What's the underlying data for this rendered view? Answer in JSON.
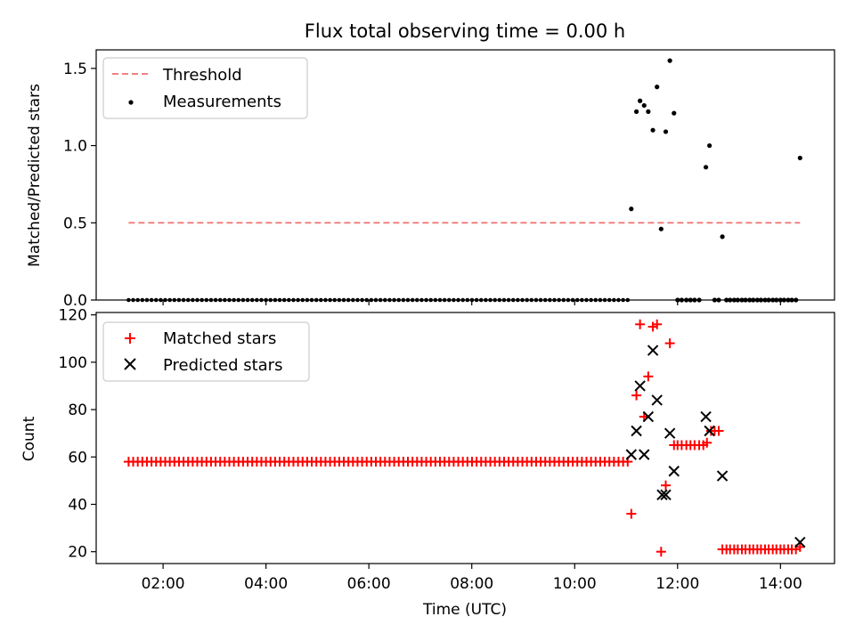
{
  "chart_data": [
    {
      "type": "scatter",
      "title": "Flux total observing time = 0.00 h",
      "xlabel": "",
      "ylabel": "Matched/Predicted stars",
      "xlim": [
        0.7,
        15.05
      ],
      "ylim": [
        0,
        1.62
      ],
      "yticks": [
        0.0,
        0.5,
        1.0,
        1.5
      ],
      "ytick_labels": [
        "0.0",
        "0.5",
        "1.0",
        "1.5"
      ],
      "legend_position": "top-left",
      "threshold": {
        "name": "Threshold",
        "value": 0.5,
        "x_range": [
          1.33,
          14.38
        ],
        "color": "#f08080"
      },
      "measurements": {
        "name": "Measurements",
        "color": "#000000",
        "zeros_range": [
          1.33,
          11.03
        ],
        "zeros_count": 110,
        "points": [
          [
            11.1,
            0.59
          ],
          [
            11.2,
            1.22
          ],
          [
            11.27,
            1.29
          ],
          [
            11.35,
            1.26
          ],
          [
            11.43,
            1.22
          ],
          [
            11.52,
            1.1
          ],
          [
            11.6,
            1.38
          ],
          [
            11.68,
            0.46
          ],
          [
            11.77,
            1.09
          ],
          [
            11.85,
            1.55
          ],
          [
            11.93,
            1.21
          ],
          [
            12.0,
            0.0
          ],
          [
            12.08,
            0.0
          ],
          [
            12.17,
            0.0
          ],
          [
            12.25,
            0.0
          ],
          [
            12.33,
            0.0
          ],
          [
            12.42,
            0.0
          ],
          [
            12.55,
            0.86
          ],
          [
            12.62,
            1.0
          ],
          [
            12.72,
            0.0
          ],
          [
            12.8,
            0.0
          ],
          [
            12.87,
            0.41
          ],
          [
            12.95,
            0.0
          ],
          [
            13.02,
            0.0
          ],
          [
            13.1,
            0.0
          ],
          [
            13.17,
            0.0
          ],
          [
            13.25,
            0.0
          ],
          [
            13.32,
            0.0
          ],
          [
            13.4,
            0.0
          ],
          [
            13.47,
            0.0
          ],
          [
            13.55,
            0.0
          ],
          [
            13.62,
            0.0
          ],
          [
            13.7,
            0.0
          ],
          [
            13.77,
            0.0
          ],
          [
            13.85,
            0.0
          ],
          [
            13.92,
            0.0
          ],
          [
            14.0,
            0.0
          ],
          [
            14.07,
            0.0
          ],
          [
            14.15,
            0.0
          ],
          [
            14.22,
            0.0
          ],
          [
            14.3,
            0.0
          ],
          [
            14.38,
            0.92
          ]
        ]
      }
    },
    {
      "type": "scatter",
      "title": "",
      "xlabel": "Time (UTC)",
      "ylabel": "Count",
      "xlim": [
        0.7,
        15.05
      ],
      "ylim": [
        15,
        121
      ],
      "yticks": [
        20,
        40,
        60,
        80,
        100,
        120
      ],
      "ytick_labels": [
        "20",
        "40",
        "60",
        "80",
        "100",
        "120"
      ],
      "xticks": [
        2,
        4,
        6,
        8,
        10,
        12,
        14
      ],
      "xtick_labels": [
        "02:00",
        "04:00",
        "06:00",
        "08:00",
        "10:00",
        "12:00",
        "14:00"
      ],
      "legend_position": "top-left",
      "matched": {
        "name": "Matched stars",
        "color": "#ff0000",
        "constant_range": [
          1.33,
          11.03
        ],
        "constant_count": 110,
        "constant_value": 58,
        "points": [
          [
            11.1,
            36
          ],
          [
            11.2,
            86
          ],
          [
            11.27,
            116
          ],
          [
            11.35,
            77
          ],
          [
            11.43,
            94
          ],
          [
            11.52,
            115
          ],
          [
            11.6,
            116
          ],
          [
            11.68,
            20
          ],
          [
            11.77,
            48
          ],
          [
            11.85,
            108
          ],
          [
            11.93,
            65
          ],
          [
            12.0,
            65
          ],
          [
            12.08,
            65
          ],
          [
            12.17,
            65
          ],
          [
            12.25,
            65
          ],
          [
            12.33,
            65
          ],
          [
            12.42,
            65
          ],
          [
            12.5,
            65
          ],
          [
            12.57,
            66
          ],
          [
            12.65,
            71
          ],
          [
            12.72,
            71
          ],
          [
            12.8,
            71
          ],
          [
            12.87,
            21
          ],
          [
            12.95,
            21
          ],
          [
            13.02,
            21
          ],
          [
            13.1,
            21
          ],
          [
            13.17,
            21
          ],
          [
            13.25,
            21
          ],
          [
            13.32,
            21
          ],
          [
            13.4,
            21
          ],
          [
            13.47,
            21
          ],
          [
            13.55,
            21
          ],
          [
            13.62,
            21
          ],
          [
            13.7,
            21
          ],
          [
            13.77,
            21
          ],
          [
            13.85,
            21
          ],
          [
            13.92,
            21
          ],
          [
            14.0,
            21
          ],
          [
            14.07,
            21
          ],
          [
            14.15,
            21
          ],
          [
            14.22,
            21
          ],
          [
            14.3,
            21
          ],
          [
            14.38,
            22
          ]
        ]
      },
      "predicted": {
        "name": "Predicted stars",
        "color": "#000000",
        "points": [
          [
            11.1,
            61
          ],
          [
            11.2,
            71
          ],
          [
            11.27,
            90
          ],
          [
            11.35,
            61
          ],
          [
            11.43,
            77
          ],
          [
            11.52,
            105
          ],
          [
            11.6,
            84
          ],
          [
            11.7,
            44
          ],
          [
            11.77,
            44
          ],
          [
            11.85,
            70
          ],
          [
            11.93,
            54
          ],
          [
            12.55,
            77
          ],
          [
            12.62,
            71
          ],
          [
            12.87,
            52
          ],
          [
            14.38,
            24
          ]
        ]
      }
    }
  ]
}
